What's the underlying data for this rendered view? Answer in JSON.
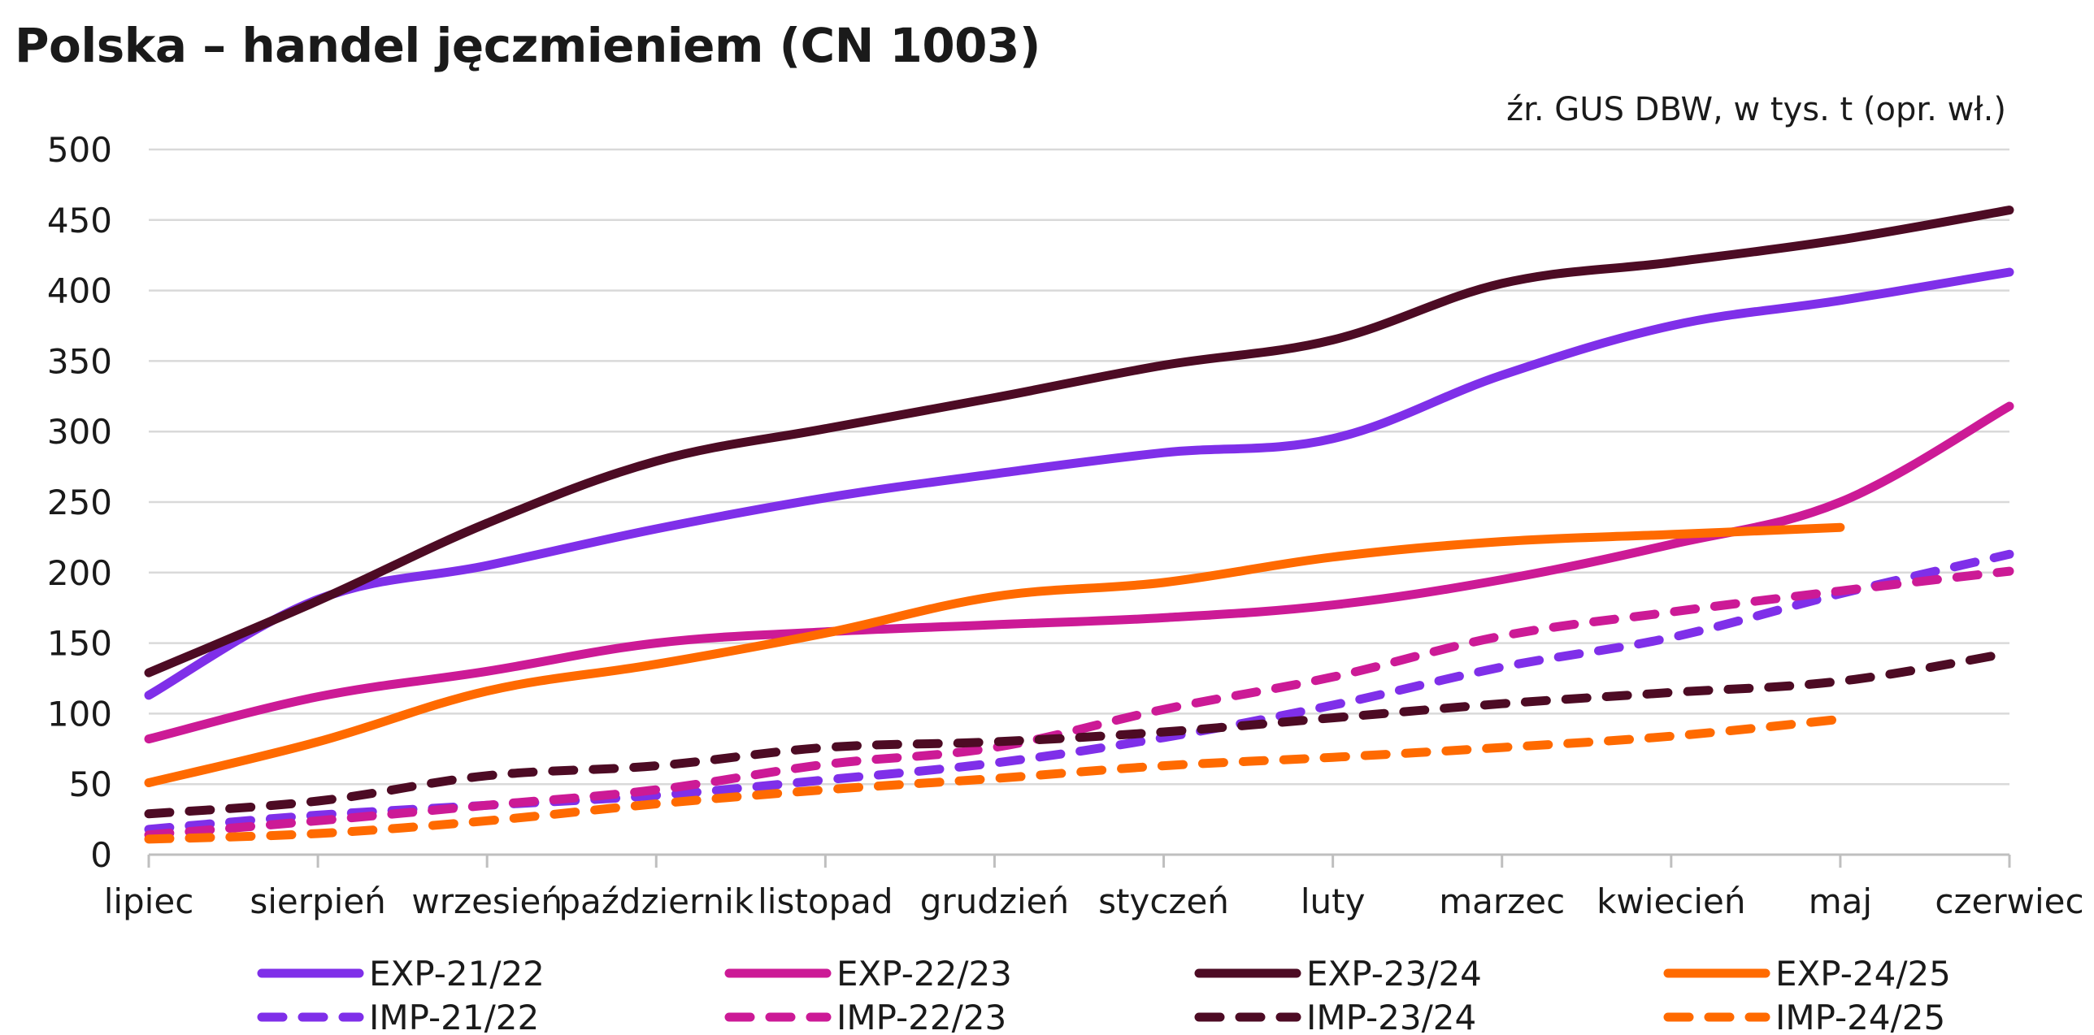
{
  "chart_data": {
    "type": "line",
    "title": "Polska – handel jęczmieniem (CN 1003)",
    "source_note": "źr. GUS DBW, w tys. t (opr. wł.)",
    "categories": [
      "lipiec",
      "sierpień",
      "wrzesień",
      "październik",
      "listopad",
      "grudzień",
      "styczeń",
      "luty",
      "marzec",
      "kwiecień",
      "maj",
      "czerwiec"
    ],
    "ylim": [
      0,
      500
    ],
    "yticks": [
      0,
      50,
      100,
      150,
      200,
      250,
      300,
      350,
      400,
      450,
      500
    ],
    "grid": true,
    "legend_position": "bottom",
    "series": [
      {
        "name": "EXP-21/22",
        "color": "#7f2fe9",
        "style": "solid",
        "values": [
          113,
          181,
          205,
          231,
          253,
          270,
          285,
          295,
          340,
          375,
          393,
          413
        ]
      },
      {
        "name": "EXP-22/23",
        "color": "#cc1a96",
        "style": "solid",
        "values": [
          82,
          112,
          130,
          150,
          158,
          163,
          168,
          177,
          195,
          220,
          250,
          318
        ]
      },
      {
        "name": "EXP-23/24",
        "color": "#4d0b24",
        "style": "solid",
        "values": [
          129,
          180,
          235,
          279,
          302,
          324,
          347,
          365,
          405,
          420,
          436,
          457
        ]
      },
      {
        "name": "EXP-24/25",
        "color": "#ff6a00",
        "style": "solid",
        "values": [
          51,
          80,
          116,
          135,
          157,
          183,
          193,
          211,
          222,
          227,
          232,
          null
        ]
      },
      {
        "name": "IMP-21/22",
        "color": "#7f2fe9",
        "style": "dashed",
        "values": [
          18,
          28,
          35,
          42,
          53,
          65,
          83,
          106,
          133,
          154,
          185,
          213
        ]
      },
      {
        "name": "IMP-22/23",
        "color": "#cc1a96",
        "style": "dashed",
        "values": [
          14,
          24,
          35,
          46,
          64,
          76,
          103,
          126,
          155,
          172,
          187,
          201
        ]
      },
      {
        "name": "IMP-23/24",
        "color": "#4d0b24",
        "style": "dashed",
        "values": [
          29,
          38,
          56,
          63,
          76,
          80,
          87,
          97,
          107,
          115,
          123,
          143
        ]
      },
      {
        "name": "IMP-24/25",
        "color": "#ff6a00",
        "style": "dashed",
        "values": [
          11,
          15,
          24,
          36,
          46,
          54,
          63,
          69,
          76,
          84,
          96,
          null
        ]
      }
    ]
  }
}
